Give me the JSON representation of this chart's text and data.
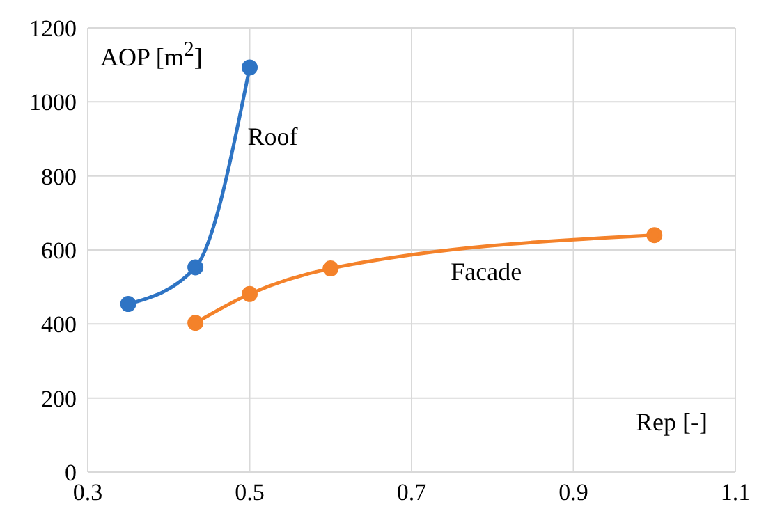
{
  "chart_data": {
    "type": "line",
    "xlabel": "Rep [-]",
    "ylabel": "AOP [m$^{2}$]",
    "xlim": [
      0.3,
      1.1
    ],
    "xticks": [
      0.3,
      0.5,
      0.7,
      0.9,
      1.1
    ],
    "ylim": [
      0,
      1200
    ],
    "yticks": [
      0,
      200,
      400,
      600,
      800,
      1000,
      1200
    ],
    "grid": true,
    "legend": false,
    "marker": "circle",
    "line_style": "solid",
    "series": [
      {
        "name": "Roof",
        "color": "#2e74c4",
        "x": [
          0.35,
          0.433,
          0.5
        ],
        "values": [
          454,
          553,
          1093
        ]
      },
      {
        "name": "Facade",
        "color": "#f4822a",
        "x": [
          0.433,
          0.5,
          0.6,
          1.0
        ],
        "values": [
          403,
          481,
          550,
          640
        ]
      }
    ]
  }
}
